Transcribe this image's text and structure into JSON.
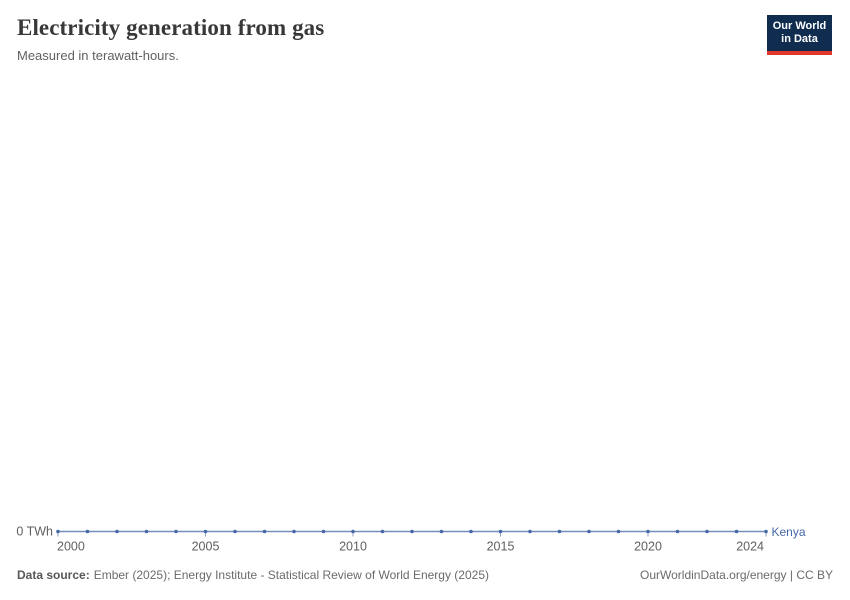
{
  "header": {
    "title": "Electricity generation from gas",
    "subtitle": "Measured in terawatt-hours."
  },
  "logo": {
    "line1": "Our World",
    "line2": "in Data",
    "bg_color": "#102d50",
    "accent_color": "#e0372c"
  },
  "chart_data": {
    "type": "line",
    "title": "Electricity generation from gas",
    "unit": "terawatt-hours",
    "x": [
      2000,
      2001,
      2002,
      2003,
      2004,
      2005,
      2006,
      2007,
      2008,
      2009,
      2010,
      2011,
      2012,
      2013,
      2014,
      2015,
      2016,
      2017,
      2018,
      2019,
      2020,
      2021,
      2022,
      2023,
      2024
    ],
    "series": [
      {
        "name": "Kenya",
        "color": "#4668a8",
        "values": [
          0,
          0,
          0,
          0,
          0,
          0,
          0,
          0,
          0,
          0,
          0,
          0,
          0,
          0,
          0,
          0,
          0,
          0,
          0,
          0,
          0,
          0,
          0,
          0,
          0
        ]
      }
    ],
    "x_ticks": [
      2000,
      2005,
      2010,
      2015,
      2020,
      2024
    ],
    "y_axis": {
      "tick_label": "0 TWh",
      "tick_value": 0
    },
    "xlim": [
      2000,
      2024
    ],
    "ylim": [
      0,
      1
    ],
    "grid": false,
    "legend": "end-of-line-label",
    "axis_label_color": "#5f5f5f",
    "tick_mark_color": "#8fa2c2"
  },
  "footer": {
    "datasource_label": "Data source:",
    "datasource_text": "Ember (2025); Energy Institute - Statistical Review of World Energy (2025)",
    "right_text": "OurWorldinData.org/energy | CC BY"
  }
}
